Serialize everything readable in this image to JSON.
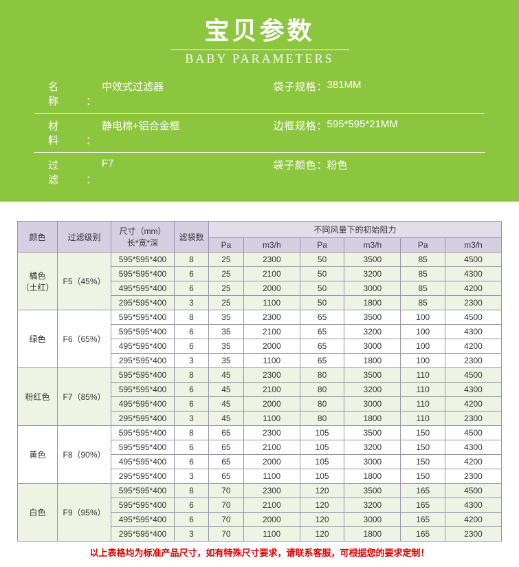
{
  "header": {
    "title_cn": "宝贝参数",
    "title_en": "BABY PARAMETERS",
    "specs": [
      {
        "label": "名 称",
        "value": "中效式过滤器",
        "wide": true
      },
      {
        "label": "袋子规格",
        "value": "381MM",
        "wide": false
      },
      {
        "label": "材 料",
        "value": "静电棉+铝合金框",
        "wide": true
      },
      {
        "label": "边框规格",
        "value": "595*595*21MM",
        "wide": false
      },
      {
        "label": "过 滤",
        "value": "F7",
        "wide": true
      },
      {
        "label": "袋子颜色",
        "value": "粉色",
        "wide": false
      }
    ]
  },
  "table": {
    "headers": {
      "color": "颜色",
      "grade": "过滤级别",
      "size": "尺寸（mm）\n长*宽*深",
      "bags": "滤袋数",
      "resistance_title": "不同风量下的初始阻力",
      "sub": [
        "Pa",
        "m3/h",
        "Pa",
        "m3/h",
        "Pa",
        "m3/h"
      ]
    },
    "groups": [
      {
        "color": "橘色\n（土红）",
        "grade": "F5（45%）",
        "tint": true,
        "rows": [
          [
            "595*595*400",
            "8",
            "25",
            "2300",
            "50",
            "3500",
            "85",
            "4500"
          ],
          [
            "595*595*400",
            "6",
            "25",
            "2100",
            "50",
            "3200",
            "85",
            "4300"
          ],
          [
            "495*595*400",
            "6",
            "25",
            "2000",
            "50",
            "3000",
            "85",
            "4200"
          ],
          [
            "295*595*400",
            "3",
            "25",
            "1100",
            "50",
            "1800",
            "85",
            "2300"
          ]
        ]
      },
      {
        "color": "绿色",
        "grade": "F6（65%）",
        "tint": false,
        "rows": [
          [
            "595*595*400",
            "8",
            "35",
            "2300",
            "65",
            "3500",
            "100",
            "4500"
          ],
          [
            "595*595*400",
            "6",
            "35",
            "2100",
            "65",
            "3200",
            "100",
            "4300"
          ],
          [
            "495*595*400",
            "6",
            "35",
            "2000",
            "65",
            "3000",
            "100",
            "4200"
          ],
          [
            "295*595*400",
            "3",
            "35",
            "1100",
            "65",
            "1800",
            "100",
            "2300"
          ]
        ]
      },
      {
        "color": "粉红色",
        "grade": "F7（85%）",
        "tint": true,
        "rows": [
          [
            "595*595*400",
            "8",
            "45",
            "2300",
            "80",
            "3500",
            "110",
            "4500"
          ],
          [
            "595*595*400",
            "6",
            "45",
            "2100",
            "80",
            "3200",
            "110",
            "4300"
          ],
          [
            "495*595*400",
            "6",
            "45",
            "2000",
            "80",
            "3000",
            "110",
            "4200"
          ],
          [
            "295*595*400",
            "3",
            "45",
            "1100",
            "80",
            "1800",
            "110",
            "2300"
          ]
        ]
      },
      {
        "color": "黄色",
        "grade": "F8（90%）",
        "tint": false,
        "rows": [
          [
            "595*595*400",
            "8",
            "65",
            "2300",
            "105",
            "3500",
            "150",
            "4500"
          ],
          [
            "595*595*400",
            "6",
            "65",
            "2100",
            "105",
            "3200",
            "150",
            "4300"
          ],
          [
            "495*595*400",
            "6",
            "65",
            "2000",
            "105",
            "3000",
            "150",
            "4200"
          ],
          [
            "295*595*400",
            "3",
            "65",
            "1100",
            "105",
            "1800",
            "150",
            "2300"
          ]
        ]
      },
      {
        "color": "白色",
        "grade": "F9（95%）",
        "tint": true,
        "rows": [
          [
            "595*595*400",
            "8",
            "70",
            "2300",
            "120",
            "3500",
            "165",
            "4500"
          ],
          [
            "595*595*400",
            "6",
            "70",
            "2100",
            "120",
            "3200",
            "165",
            "4300"
          ],
          [
            "495*595*400",
            "6",
            "70",
            "2000",
            "120",
            "3000",
            "165",
            "4200"
          ],
          [
            "295*595*400",
            "3",
            "70",
            "1100",
            "120",
            "1800",
            "165",
            "2300"
          ]
        ]
      }
    ],
    "footer": "以上表格均为标准产品尺寸，如有特殊尺寸要求，请联系客服，可根据您的要求定制！"
  }
}
